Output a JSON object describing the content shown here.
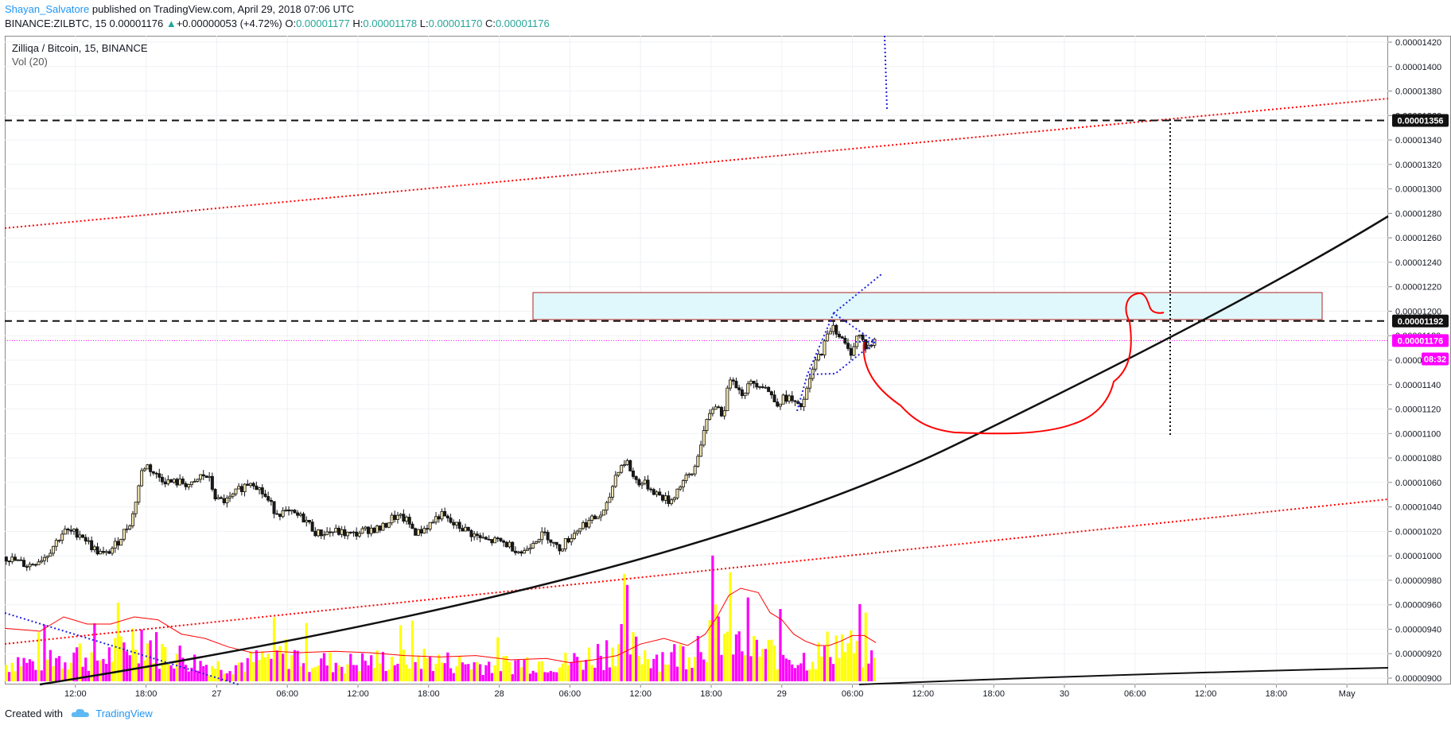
{
  "header": {
    "author": "Shayan_Salvatore",
    "published_text": " published on TradingView.com, April 29, 2018 07:06 UTC",
    "symbol_text": "BINANCE:ZILBTC, 15",
    "last_price": "0.00001176",
    "change_text": "+0.00000053 (+4.72%)",
    "o_label": "O:",
    "o_value": "0.00001177",
    "h_label": "H:",
    "h_value": "0.00001178",
    "l_label": "L:",
    "l_value": "0.00001170",
    "c_label": "C:",
    "c_value": "0.00001176"
  },
  "pane": {
    "title": "Zilliqa / Bitcoin, 15, BINANCE",
    "volume_label": "Vol (20)"
  },
  "footer": {
    "created_with": "Created with",
    "brand": "TradingView"
  },
  "colors": {
    "up": "#26a69a",
    "candle_up_fill": "#f5e6b0",
    "candle_down_fill": "#1a1a1a",
    "vol_yellow": "#ffff00",
    "vol_magenta": "#ff00ff",
    "red_annot": "#ff0000",
    "blue_annot": "#2222dd",
    "price_tag": "#ff00ff",
    "box_fill": "#e0f8fc"
  },
  "chart_data": {
    "type": "candlestick",
    "y_ticks": [
      "0.00001420",
      "0.00001400",
      "0.00001380",
      "0.00001360",
      "0.00001340",
      "0.00001320",
      "0.00001300",
      "0.00001280",
      "0.00001260",
      "0.00001240",
      "0.00001220",
      "0.00001200",
      "0.00001180",
      "0.00001160",
      "0.00001140",
      "0.00001120",
      "0.00001100",
      "0.00001080",
      "0.00001060",
      "0.00001040",
      "0.00001020",
      "0.00001000",
      "0.00000980",
      "0.00000960",
      "0.00000940",
      "0.00000920",
      "0.00000900"
    ],
    "ylim": [
      9e-06,
      1.42e-05
    ],
    "x_ticks": [
      "12:00",
      "18:00",
      "27",
      "06:00",
      "12:00",
      "18:00",
      "28",
      "06:00",
      "12:00",
      "18:00",
      "29",
      "06:00",
      "12:00",
      "18:00",
      "30",
      "06:00",
      "12:00",
      "18:00",
      "May"
    ],
    "x_tick_hours": [
      12,
      18,
      24,
      30,
      36,
      42,
      48,
      54,
      60,
      66,
      72,
      78,
      84,
      90,
      96,
      102,
      108,
      114,
      120
    ],
    "xlim_hours": [
      6.0,
      123.5
    ],
    "price_labels": [
      {
        "text": "0.00001356",
        "value": 1.356e-05,
        "style": "dark"
      },
      {
        "text": "0.00001192",
        "value": 1.192e-05,
        "style": "dark"
      },
      {
        "text": "0.00001176",
        "value": 1.176e-05,
        "style": "magenta"
      },
      {
        "text": "08:32",
        "value": 1.161e-05,
        "style": "magenta"
      }
    ],
    "candle_path": [
      [
        6.0,
        9.99e-06
      ],
      [
        8.0,
        9.92e-06
      ],
      [
        9.5,
        1e-05
      ],
      [
        11.0,
        1.02e-05
      ],
      [
        12.5,
        1.018e-05
      ],
      [
        13.5,
        1.006e-05
      ],
      [
        14.5,
        1e-05
      ],
      [
        15.5,
        1.01e-05
      ],
      [
        16.8,
        1.03e-05
      ],
      [
        17.6,
        1.068e-05
      ],
      [
        18.0,
        1.075e-05
      ],
      [
        18.8,
        1.066e-05
      ],
      [
        20.0,
        1.06e-05
      ],
      [
        21.0,
        1.06e-05
      ],
      [
        22.0,
        1.057e-05
      ],
      [
        22.7,
        1.066e-05
      ],
      [
        23.3,
        1.064e-05
      ],
      [
        24.0,
        1.045e-05
      ],
      [
        25.0,
        1.045e-05
      ],
      [
        26.0,
        1.055e-05
      ],
      [
        27.0,
        1.062e-05
      ],
      [
        28.0,
        1.05e-05
      ],
      [
        29.0,
        1.036e-05
      ],
      [
        30.5,
        1.034e-05
      ],
      [
        31.5,
        1.03e-05
      ],
      [
        32.5,
        1.018e-05
      ],
      [
        34.0,
        1.02e-05
      ],
      [
        35.5,
        1.017e-05
      ],
      [
        37.0,
        1.022e-05
      ],
      [
        38.0,
        1.022e-05
      ],
      [
        39.0,
        1.032e-05
      ],
      [
        40.0,
        1.03e-05
      ],
      [
        41.0,
        1.018e-05
      ],
      [
        42.0,
        1.025e-05
      ],
      [
        43.0,
        1.034e-05
      ],
      [
        44.0,
        1.026e-05
      ],
      [
        45.0,
        1.022e-05
      ],
      [
        46.0,
        1.016e-05
      ],
      [
        47.0,
        1.012e-05
      ],
      [
        48.0,
        1.012e-05
      ],
      [
        49.0,
        1.008e-05
      ],
      [
        50.0,
        1.002e-05
      ],
      [
        51.0,
        1.014e-05
      ],
      [
        52.0,
        1.018e-05
      ],
      [
        53.0,
        1.005e-05
      ],
      [
        54.0,
        1.015e-05
      ],
      [
        55.0,
        1.025e-05
      ],
      [
        56.0,
        1.03e-05
      ],
      [
        57.0,
        1.036e-05
      ],
      [
        58.0,
        1.07e-05
      ],
      [
        58.8,
        1.078e-05
      ],
      [
        59.5,
        1.062e-05
      ],
      [
        60.5,
        1.058e-05
      ],
      [
        61.5,
        1.05e-05
      ],
      [
        62.5,
        1.044e-05
      ],
      [
        63.5,
        1.06e-05
      ],
      [
        64.5,
        1.068e-05
      ],
      [
        65.3,
        1.1e-05
      ],
      [
        66.3,
        1.125e-05
      ],
      [
        67.0,
        1.115e-05
      ],
      [
        67.7,
        1.15e-05
      ],
      [
        68.5,
        1.132e-05
      ],
      [
        69.5,
        1.142e-05
      ],
      [
        70.5,
        1.14e-05
      ],
      [
        71.5,
        1.125e-05
      ],
      [
        72.5,
        1.13e-05
      ],
      [
        73.5,
        1.12e-05
      ],
      [
        74.0,
        1.13e-05
      ],
      [
        74.7,
        1.155e-05
      ],
      [
        75.5,
        1.17e-05
      ],
      [
        76.3,
        1.19e-05
      ],
      [
        77.0,
        1.178e-05
      ],
      [
        77.8,
        1.165e-05
      ],
      [
        78.5,
        1.182e-05
      ],
      [
        79.2,
        1.17e-05
      ],
      [
        80.0,
        1.176e-05
      ]
    ],
    "volume_profile": [
      [
        6.0,
        0.25
      ],
      [
        7.0,
        0.4
      ],
      [
        8.0,
        0.3
      ],
      [
        9.0,
        0.35
      ],
      [
        10.0,
        0.5
      ],
      [
        11.0,
        0.4
      ],
      [
        12.0,
        0.6
      ],
      [
        13.0,
        0.45
      ],
      [
        14.0,
        0.4
      ],
      [
        15.0,
        0.5
      ],
      [
        16.5,
        0.8
      ],
      [
        17.5,
        1.0
      ],
      [
        18.5,
        0.7
      ],
      [
        19.5,
        0.55
      ],
      [
        20.5,
        0.5
      ],
      [
        21.5,
        0.4
      ],
      [
        22.5,
        0.3
      ],
      [
        24.0,
        0.25
      ],
      [
        26.0,
        0.3
      ],
      [
        28.0,
        0.4
      ],
      [
        30.0,
        0.55
      ],
      [
        31.0,
        0.45
      ],
      [
        33.0,
        0.35
      ],
      [
        35.0,
        0.3
      ],
      [
        37.0,
        0.35
      ],
      [
        39.0,
        0.4
      ],
      [
        41.0,
        0.45
      ],
      [
        43.0,
        0.35
      ],
      [
        45.0,
        0.3
      ],
      [
        47.0,
        0.28
      ],
      [
        49.0,
        0.3
      ],
      [
        51.0,
        0.35
      ],
      [
        53.0,
        0.3
      ],
      [
        55.0,
        0.4
      ],
      [
        57.0,
        0.6
      ],
      [
        58.5,
        0.9
      ],
      [
        59.5,
        0.6
      ],
      [
        61.0,
        0.5
      ],
      [
        62.5,
        0.45
      ],
      [
        64.0,
        0.6
      ],
      [
        65.5,
        0.95
      ],
      [
        66.5,
        1.1
      ],
      [
        67.5,
        0.9
      ],
      [
        68.5,
        0.7
      ],
      [
        70.0,
        0.6
      ],
      [
        71.5,
        0.55
      ],
      [
        72.5,
        0.5
      ],
      [
        73.5,
        0.4
      ],
      [
        74.5,
        0.45
      ],
      [
        75.5,
        0.55
      ],
      [
        76.5,
        0.8
      ],
      [
        77.5,
        0.7
      ],
      [
        78.5,
        0.6
      ],
      [
        79.5,
        0.45
      ],
      [
        80.0,
        0.3
      ]
    ],
    "volume_ma": [
      [
        6.0,
        0.37
      ],
      [
        9.0,
        0.35
      ],
      [
        11.0,
        0.45
      ],
      [
        13.0,
        0.4
      ],
      [
        15.0,
        0.4
      ],
      [
        17.0,
        0.45
      ],
      [
        19.0,
        0.43
      ],
      [
        21.0,
        0.33
      ],
      [
        23.0,
        0.3
      ],
      [
        25.0,
        0.24
      ],
      [
        27.0,
        0.2
      ],
      [
        29.0,
        0.21
      ],
      [
        31.0,
        0.2
      ],
      [
        34.0,
        0.21
      ],
      [
        37.0,
        0.2
      ],
      [
        40.0,
        0.18
      ],
      [
        43.0,
        0.17
      ],
      [
        46.0,
        0.18
      ],
      [
        49.0,
        0.15
      ],
      [
        52.0,
        0.16
      ],
      [
        54.0,
        0.13
      ],
      [
        56.0,
        0.15
      ],
      [
        58.0,
        0.18
      ],
      [
        60.0,
        0.26
      ],
      [
        62.0,
        0.3
      ],
      [
        64.0,
        0.25
      ],
      [
        65.5,
        0.33
      ],
      [
        66.5,
        0.45
      ],
      [
        67.5,
        0.6
      ],
      [
        68.5,
        0.65
      ],
      [
        70.0,
        0.62
      ],
      [
        71.0,
        0.48
      ],
      [
        72.0,
        0.43
      ],
      [
        73.0,
        0.33
      ],
      [
        74.0,
        0.28
      ],
      [
        75.0,
        0.25
      ],
      [
        76.0,
        0.25
      ],
      [
        77.0,
        0.28
      ],
      [
        78.0,
        0.32
      ],
      [
        79.0,
        0.32
      ],
      [
        80.0,
        0.27
      ]
    ]
  }
}
